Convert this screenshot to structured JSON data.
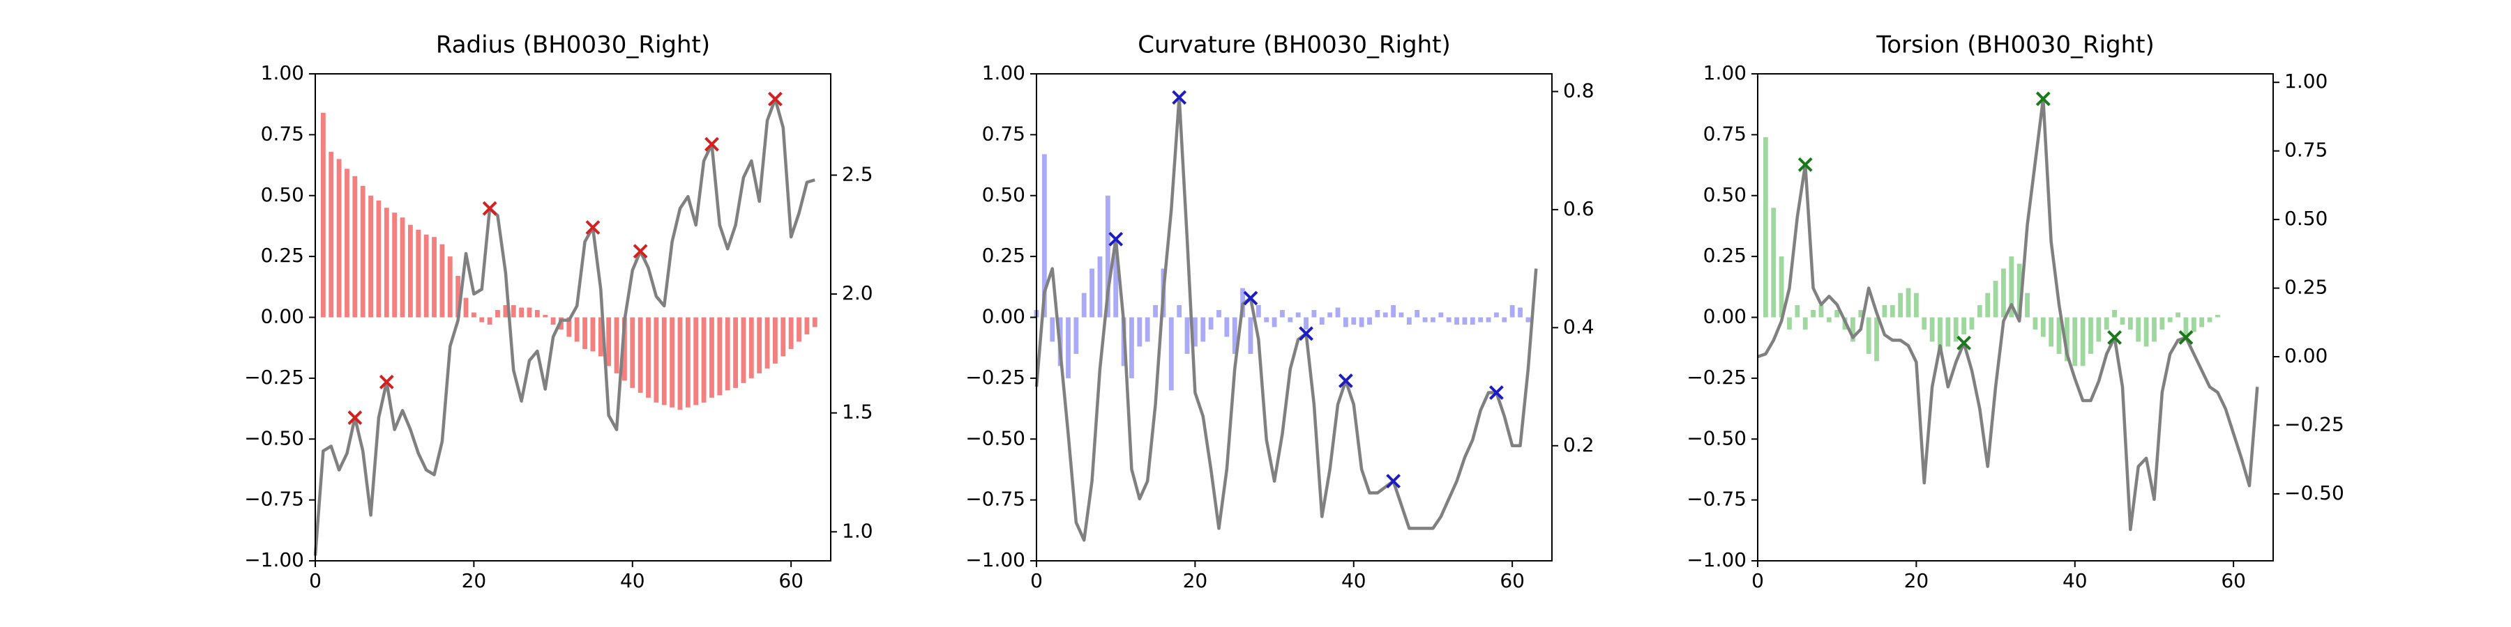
{
  "chart_data": [
    {
      "type": "bar",
      "title": "Radius (BH0030_Right)",
      "x": [
        0,
        1,
        2,
        3,
        4,
        5,
        6,
        7,
        8,
        9,
        10,
        11,
        12,
        13,
        14,
        15,
        16,
        17,
        18,
        19,
        20,
        21,
        22,
        23,
        24,
        25,
        26,
        27,
        28,
        29,
        30,
        31,
        32,
        33,
        34,
        35,
        36,
        37,
        38,
        39,
        40,
        41,
        42,
        43,
        44,
        45,
        46,
        47,
        48,
        49,
        50,
        51,
        52,
        53,
        54,
        55,
        56,
        57,
        58,
        59,
        60,
        61,
        62,
        63
      ],
      "xlim": [
        0,
        65
      ],
      "xticks": [
        0,
        20,
        40,
        60
      ],
      "ylim": [
        -1,
        1
      ],
      "yticks": [
        {
          "value": -1,
          "label": "−1.00"
        },
        {
          "value": -0.75,
          "label": "−0.75"
        },
        {
          "value": -0.5,
          "label": "−0.50"
        },
        {
          "value": -0.25,
          "label": "−0.25"
        },
        {
          "value": 0,
          "label": "0.00"
        },
        {
          "value": 0.25,
          "label": "0.25"
        },
        {
          "value": 0.5,
          "label": "0.50"
        },
        {
          "value": 0.75,
          "label": "0.75"
        },
        {
          "value": 1,
          "label": "1.00"
        }
      ],
      "y2lim": [
        0.878,
        2.926
      ],
      "y2ticks": [
        {
          "value": 1,
          "label": "1.0"
        },
        1.5,
        {
          "value": 2,
          "label": "2.0"
        },
        2.5
      ],
      "series": [
        {
          "type": "bar",
          "color": "#f47f7f",
          "values": [
            0,
            0.84,
            0.68,
            0.65,
            0.61,
            0.58,
            0.54,
            0.5,
            0.48,
            0.45,
            0.43,
            0.41,
            0.38,
            0.36,
            0.34,
            0.33,
            0.3,
            0.25,
            0.17,
            0.08,
            0.02,
            -0.02,
            -0.03,
            0.03,
            0.05,
            0.05,
            0.04,
            0.04,
            0.03,
            0.01,
            -0.03,
            -0.05,
            -0.08,
            -0.1,
            -0.13,
            -0.14,
            -0.16,
            -0.2,
            -0.23,
            -0.26,
            -0.29,
            -0.31,
            -0.33,
            -0.35,
            -0.36,
            -0.37,
            -0.38,
            -0.37,
            -0.36,
            -0.35,
            -0.33,
            -0.32,
            -0.3,
            -0.29,
            -0.27,
            -0.25,
            -0.23,
            -0.21,
            -0.19,
            -0.16,
            -0.13,
            -0.1,
            -0.07,
            -0.04
          ]
        },
        {
          "type": "line",
          "axis": "y2",
          "color": "#808080",
          "values": [
            0.9,
            1.34,
            1.36,
            1.26,
            1.33,
            1.48,
            1.34,
            1.07,
            1.48,
            1.63,
            1.43,
            1.51,
            1.43,
            1.33,
            1.26,
            1.24,
            1.38,
            1.78,
            1.89,
            2.17,
            2.0,
            2.02,
            2.36,
            2.33,
            2.09,
            1.68,
            1.55,
            1.72,
            1.76,
            1.6,
            1.82,
            1.89,
            1.89,
            1.95,
            2.22,
            2.28,
            2.02,
            1.49,
            1.43,
            1.89,
            2.1,
            2.18,
            2.11,
            1.99,
            1.95,
            2.22,
            2.36,
            2.41,
            2.29,
            2.56,
            2.63,
            2.29,
            2.19,
            2.29,
            2.49,
            2.56,
            2.39,
            2.73,
            2.82,
            2.7,
            2.24,
            2.34,
            2.47,
            2.48
          ]
        },
        {
          "type": "scatter",
          "axis": "y2",
          "color": "#d62020",
          "x": [
            5,
            9,
            22,
            35,
            41,
            50,
            58
          ],
          "values": [
            1.48,
            1.63,
            2.36,
            2.28,
            2.18,
            2.63,
            2.82
          ]
        }
      ]
    },
    {
      "type": "bar",
      "title": "Curvature (BH0030_Right)",
      "x": [
        0,
        1,
        2,
        3,
        4,
        5,
        6,
        7,
        8,
        9,
        10,
        11,
        12,
        13,
        14,
        15,
        16,
        17,
        18,
        19,
        20,
        21,
        22,
        23,
        24,
        25,
        26,
        27,
        28,
        29,
        30,
        31,
        32,
        33,
        34,
        35,
        36,
        37,
        38,
        39,
        40,
        41,
        42,
        43,
        44,
        45,
        46,
        47,
        48,
        49,
        50,
        51,
        52,
        53,
        54,
        55,
        56,
        57,
        58,
        59,
        60,
        61,
        62,
        63
      ],
      "xlim": [
        0,
        65
      ],
      "xticks": [
        0,
        20,
        40,
        60
      ],
      "ylim": [
        -1,
        1
      ],
      "yticks": [
        {
          "value": -1,
          "label": "−1.00"
        },
        {
          "value": -0.75,
          "label": "−0.75"
        },
        {
          "value": -0.5,
          "label": "−0.50"
        },
        {
          "value": -0.25,
          "label": "−0.25"
        },
        {
          "value": 0,
          "label": "0.00"
        },
        {
          "value": 0.25,
          "label": "0.25"
        },
        {
          "value": 0.5,
          "label": "0.50"
        },
        {
          "value": 0.75,
          "label": "0.75"
        },
        {
          "value": 1,
          "label": "1.00"
        }
      ],
      "y2lim": [
        0.005,
        0.83
      ],
      "y2ticks": [
        0.2,
        0.4,
        0.6,
        0.8
      ],
      "series": [
        {
          "type": "bar",
          "color": "#aaaaf6",
          "values": [
            0.03,
            0.67,
            -0.1,
            -0.2,
            -0.25,
            -0.15,
            0.1,
            0.2,
            0.25,
            0.5,
            0.3,
            -0.2,
            -0.25,
            -0.12,
            -0.1,
            0.05,
            0.2,
            -0.3,
            0.05,
            -0.15,
            -0.12,
            -0.1,
            -0.05,
            0.03,
            -0.08,
            -0.15,
            0.12,
            -0.15,
            0.05,
            -0.02,
            -0.04,
            0.03,
            -0.02,
            0.02,
            -0.05,
            0.03,
            -0.03,
            0.02,
            0.04,
            -0.04,
            -0.03,
            -0.04,
            -0.03,
            0.03,
            0.02,
            0.05,
            0.02,
            -0.03,
            0.03,
            -0.02,
            -0.02,
            0.02,
            -0.02,
            -0.03,
            -0.03,
            -0.03,
            -0.02,
            -0.02,
            0.02,
            -0.02,
            0.05,
            0.04,
            -0.02,
            0
          ]
        },
        {
          "type": "line",
          "axis": "y2",
          "color": "#808080",
          "values": [
            0.3,
            0.46,
            0.5,
            0.36,
            0.22,
            0.07,
            0.04,
            0.14,
            0.33,
            0.46,
            0.55,
            0.41,
            0.16,
            0.11,
            0.14,
            0.27,
            0.46,
            0.6,
            0.79,
            0.55,
            0.29,
            0.25,
            0.16,
            0.06,
            0.16,
            0.33,
            0.44,
            0.45,
            0.38,
            0.21,
            0.14,
            0.22,
            0.33,
            0.38,
            0.39,
            0.27,
            0.08,
            0.16,
            0.27,
            0.31,
            0.27,
            0.16,
            0.12,
            0.12,
            0.13,
            0.14,
            0.1,
            0.06,
            0.06,
            0.06,
            0.06,
            0.08,
            0.11,
            0.14,
            0.18,
            0.21,
            0.26,
            0.29,
            0.29,
            0.25,
            0.2,
            0.2,
            0.33,
            0.5
          ]
        },
        {
          "type": "scatter",
          "axis": "y2",
          "color": "#1c1cc4",
          "x": [
            10,
            18,
            27,
            34,
            39,
            45,
            58
          ],
          "values": [
            0.55,
            0.79,
            0.45,
            0.39,
            0.31,
            0.14,
            0.29
          ]
        }
      ]
    },
    {
      "type": "bar",
      "title": "Torsion (BH0030_Right)",
      "x": [
        0,
        1,
        2,
        3,
        4,
        5,
        6,
        7,
        8,
        9,
        10,
        11,
        12,
        13,
        14,
        15,
        16,
        17,
        18,
        19,
        20,
        21,
        22,
        23,
        24,
        25,
        26,
        27,
        28,
        29,
        30,
        31,
        32,
        33,
        34,
        35,
        36,
        37,
        38,
        39,
        40,
        41,
        42,
        43,
        44,
        45,
        46,
        47,
        48,
        49,
        50,
        51,
        52,
        53,
        54,
        55,
        56,
        57,
        58,
        59,
        60,
        61,
        62,
        63
      ],
      "xlim": [
        0,
        65
      ],
      "xticks": [
        0,
        20,
        40,
        60
      ],
      "ylim": [
        -1,
        1
      ],
      "yticks": [
        {
          "value": -1,
          "label": "−1.00"
        },
        {
          "value": -0.75,
          "label": "−0.75"
        },
        {
          "value": -0.5,
          "label": "−0.50"
        },
        {
          "value": -0.25,
          "label": "−0.25"
        },
        {
          "value": 0,
          "label": "0.00"
        },
        {
          "value": 0.25,
          "label": "0.25"
        },
        {
          "value": 0.5,
          "label": "0.50"
        },
        {
          "value": 0.75,
          "label": "0.75"
        },
        {
          "value": 1,
          "label": "1.00"
        }
      ],
      "y2lim": [
        -0.744,
        1.031
      ],
      "y2ticks": [
        {
          "value": -0.5,
          "label": "−0.50"
        },
        {
          "value": -0.25,
          "label": "−0.25"
        },
        {
          "value": 0,
          "label": "0.00"
        },
        {
          "value": 0.25,
          "label": "0.25"
        },
        {
          "value": 0.5,
          "label": "0.50"
        },
        {
          "value": 0.75,
          "label": "0.75"
        },
        {
          "value": 1,
          "label": "1.00"
        }
      ],
      "series": [
        {
          "type": "bar",
          "color": "#9fd89f",
          "values": [
            0,
            0.74,
            0.45,
            0.25,
            -0.05,
            0.05,
            -0.05,
            0.03,
            0.05,
            -0.02,
            0.03,
            -0.05,
            -0.1,
            0.03,
            -0.15,
            -0.18,
            0.05,
            0.05,
            0.1,
            0.12,
            0.1,
            -0.05,
            -0.1,
            -0.15,
            -0.12,
            -0.1,
            -0.07,
            -0.05,
            0.05,
            0.1,
            0.15,
            0.2,
            0.25,
            0.22,
            0.1,
            -0.05,
            -0.08,
            -0.12,
            -0.15,
            -0.18,
            -0.2,
            -0.2,
            -0.15,
            -0.1,
            -0.05,
            0.03,
            -0.03,
            -0.05,
            -0.1,
            -0.12,
            -0.1,
            -0.05,
            -0.02,
            0.02,
            -0.08,
            -0.06,
            -0.04,
            -0.02,
            0.01,
            0,
            0,
            0,
            0,
            0
          ]
        },
        {
          "type": "line",
          "axis": "y2",
          "color": "#808080",
          "values": [
            0.0,
            0.01,
            0.06,
            0.13,
            0.25,
            0.51,
            0.7,
            0.25,
            0.19,
            0.22,
            0.19,
            0.13,
            0.07,
            0.1,
            0.25,
            0.16,
            0.08,
            0.06,
            0.06,
            0.04,
            -0.02,
            -0.46,
            -0.11,
            0.04,
            -0.11,
            -0.02,
            0.05,
            -0.05,
            -0.19,
            -0.4,
            -0.11,
            0.13,
            0.19,
            0.13,
            0.48,
            0.71,
            0.94,
            0.42,
            0.19,
            0.01,
            -0.08,
            -0.16,
            -0.16,
            -0.09,
            0.01,
            0.07,
            -0.11,
            -0.63,
            -0.4,
            -0.37,
            -0.52,
            -0.13,
            0.01,
            0.06,
            0.07,
            0.01,
            -0.05,
            -0.11,
            -0.13,
            -0.19,
            -0.28,
            -0.37,
            -0.47,
            -0.11
          ]
        },
        {
          "type": "scatter",
          "axis": "y2",
          "color": "#1a7a1a",
          "x": [
            6,
            26,
            36,
            45,
            54
          ],
          "values": [
            0.7,
            0.05,
            0.94,
            0.07,
            0.07
          ]
        }
      ]
    }
  ]
}
